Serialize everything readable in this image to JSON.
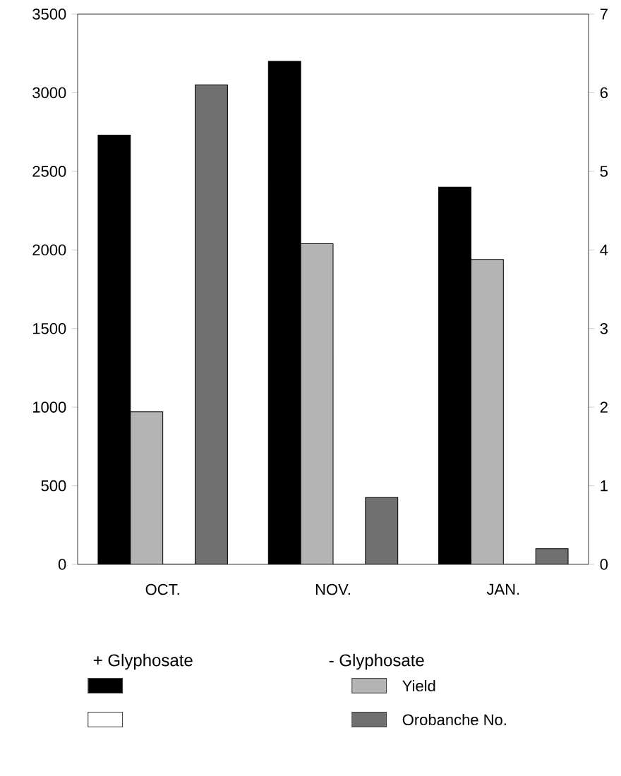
{
  "chart_data": {
    "type": "bar",
    "categories": [
      "OCT.",
      "NOV.",
      "JAN."
    ],
    "series": [
      {
        "color": "#000000",
        "values": [
          2730,
          3200,
          2400
        ]
      },
      {
        "name": "Yield",
        "color": "#b4b4b4",
        "values": [
          970,
          2040,
          1940
        ]
      },
      {
        "color": "#ffffff",
        "axis": "y2",
        "values": [
          0,
          0,
          0
        ]
      },
      {
        "name": "Orobanche No.",
        "color": "#707070",
        "axis": "y2",
        "values": [
          6.1,
          0.85,
          0.2
        ]
      }
    ],
    "ylim": [
      0,
      3500
    ],
    "yticks": [
      0,
      500,
      1000,
      1500,
      2000,
      2500,
      3000,
      3500
    ],
    "y2lim": [
      0,
      7
    ],
    "y2ticks": [
      0,
      1,
      2,
      3,
      4,
      5,
      6,
      7
    ],
    "legend": "bottom",
    "grid": false,
    "annotations": [
      "+ Glyphosate",
      "- Glyphosate"
    ]
  }
}
